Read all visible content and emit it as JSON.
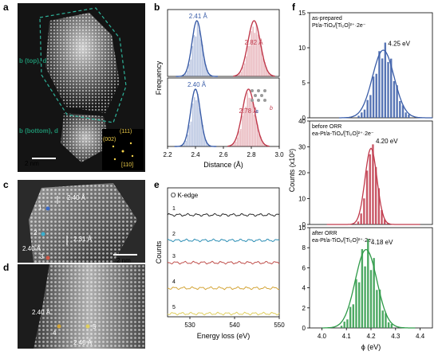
{
  "panels": {
    "a": {
      "letter": "a",
      "label_top": "b (top), d",
      "label_bottom": "b (bottom), d",
      "scale_bar": "2 nm",
      "fft": {
        "top": "(111)",
        "left": "(002)",
        "bottom": "[110]"
      }
    },
    "c": {
      "letter": "c",
      "scale_bar": "2 nm",
      "spacing_labels": [
        "2.40 Å",
        "2.31 Å",
        "2.40 Å"
      ],
      "site_labels": [
        "1",
        "2",
        "3"
      ]
    },
    "d": {
      "letter": "d",
      "spacing_labels": [
        "2.40 Å",
        "2.40 Å"
      ],
      "site_labels": [
        "4",
        "5"
      ]
    },
    "e": {
      "letter": "e",
      "edge_label": "O K-edge",
      "curve_labels": [
        "1",
        "2",
        "3",
        "4",
        "5"
      ],
      "curve_colors": [
        "#2b2b2b",
        "#2e8fb5",
        "#c0504d",
        "#d4a63a",
        "#e0d060"
      ]
    },
    "b": {
      "letter": "b",
      "inset_a": "a",
      "inset_b": "b"
    },
    "f": {
      "letter": "f",
      "subtitles": [
        [
          "as-prepared",
          "Pt/a-TiOₓ/[Ti₂O]²⁺·2e⁻"
        ],
        [
          "before ORR",
          "ea-Pt/a-TiOₓ/[Ti₂O]²⁺·2e⁻"
        ],
        [
          "after ORR",
          "ea-Pt/a-TiOₓ/[Ti₂O]²⁺·2e⁻"
        ]
      ]
    }
  },
  "chart_data": [
    {
      "type": "bar",
      "panel": "b",
      "xlabel": "Distance (Å)",
      "ylabel": "Frequency",
      "xlim": [
        2.2,
        3.0
      ],
      "xticks": [
        "2.2",
        "2.4",
        "2.6",
        "2.8",
        "3.0"
      ],
      "subplots": [
        {
          "peaks": [
            {
              "center": 2.41,
              "label": "2.41 Å",
              "color": "#3a5da8"
            },
            {
              "center": 2.82,
              "label": "2.82 Å",
              "color": "#c0394b"
            }
          ]
        },
        {
          "peaks": [
            {
              "center": 2.4,
              "label": "2.40 Å",
              "color": "#3a5da8"
            },
            {
              "center": 2.78,
              "label": "2.78 Å",
              "color": "#c0394b"
            }
          ]
        }
      ]
    },
    {
      "type": "line",
      "panel": "e",
      "xlabel": "Energy loss (eV)",
      "ylabel": "Counts",
      "xlim": [
        525,
        550
      ],
      "xticks": [
        "530",
        "540",
        "550"
      ],
      "series": [
        {
          "name": "1",
          "color": "#2b2b2b"
        },
        {
          "name": "2",
          "color": "#2e8fb5"
        },
        {
          "name": "3",
          "color": "#c0504d"
        },
        {
          "name": "4",
          "color": "#d4a63a"
        },
        {
          "name": "5",
          "color": "#e0d060"
        }
      ]
    },
    {
      "type": "bar",
      "panel": "f",
      "xlabel": "ϕ (eV)",
      "ylabel": "Counts (x10²)",
      "xlim": [
        3.95,
        4.45
      ],
      "xticks": [
        "4.0",
        "4.1",
        "4.2",
        "4.3",
        "4.4"
      ],
      "subplots": [
        {
          "center": 4.25,
          "label": "4.25 eV",
          "color": "#3a5da8",
          "ylim": [
            0,
            15
          ],
          "yticks": [
            "0",
            "5",
            "10",
            "15"
          ]
        },
        {
          "center": 4.2,
          "label": "4.20 eV",
          "color": "#c0394b",
          "ylim": [
            0,
            40
          ],
          "yticks": [
            "0",
            "10",
            "20",
            "30",
            "40"
          ]
        },
        {
          "center": 4.18,
          "label": "4.18 eV",
          "color": "#2e9a48",
          "ylim": [
            0,
            10
          ],
          "yticks": [
            "0",
            "2",
            "4",
            "6",
            "8",
            "10"
          ]
        }
      ]
    }
  ]
}
